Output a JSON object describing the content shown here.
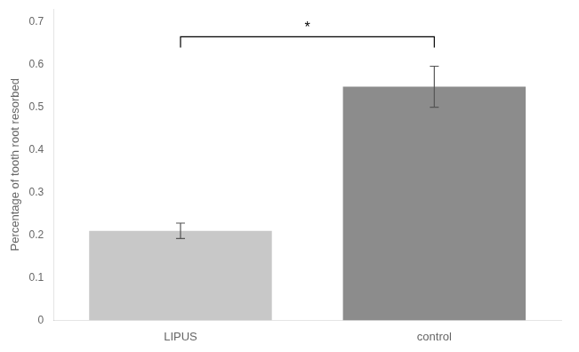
{
  "chart_data": {
    "type": "bar",
    "categories": [
      "LIPUS",
      "control"
    ],
    "values": [
      0.21,
      0.548
    ],
    "errors": [
      0.018,
      0.048
    ],
    "colors": [
      "#c8c8c8",
      "#8c8c8c"
    ],
    "ylabel": "Percentage of tooth root resorbed",
    "ylim": [
      0,
      0.73
    ],
    "yticks": [
      0,
      0.1,
      0.2,
      0.3,
      0.4,
      0.5,
      0.6,
      0.7
    ],
    "grid": false,
    "annotations": [
      {
        "text": "*",
        "from": "LIPUS",
        "to": "control",
        "y": 0.665,
        "drop": 0.025
      }
    ]
  }
}
